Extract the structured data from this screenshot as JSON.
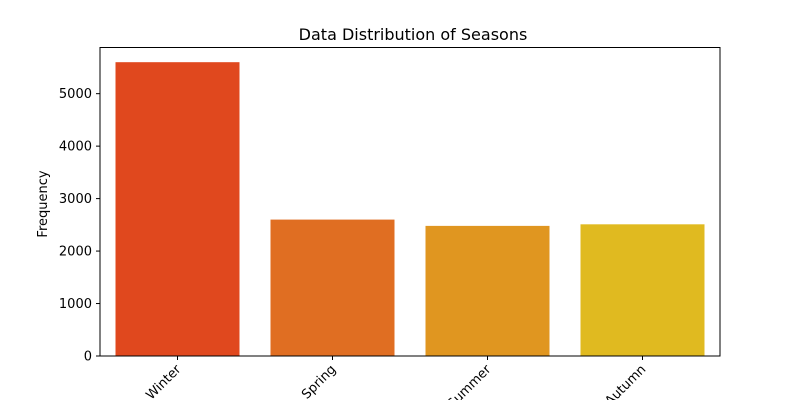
{
  "chart_data": {
    "type": "bar",
    "title": "Data Distribution of Seasons",
    "xlabel": "",
    "ylabel": "Frequency",
    "categories": [
      "Winter",
      "Spring",
      "Summer",
      "Autumn"
    ],
    "values": [
      5600,
      2600,
      2480,
      2510
    ],
    "colors": [
      "#e0481e",
      "#e06e22",
      "#e09620",
      "#e0ba20"
    ],
    "ylim": [
      0,
      5880
    ],
    "yticks": [
      0,
      1000,
      2000,
      3000,
      4000,
      5000
    ],
    "grid": false,
    "x_tick_rotation_deg": 45
  }
}
